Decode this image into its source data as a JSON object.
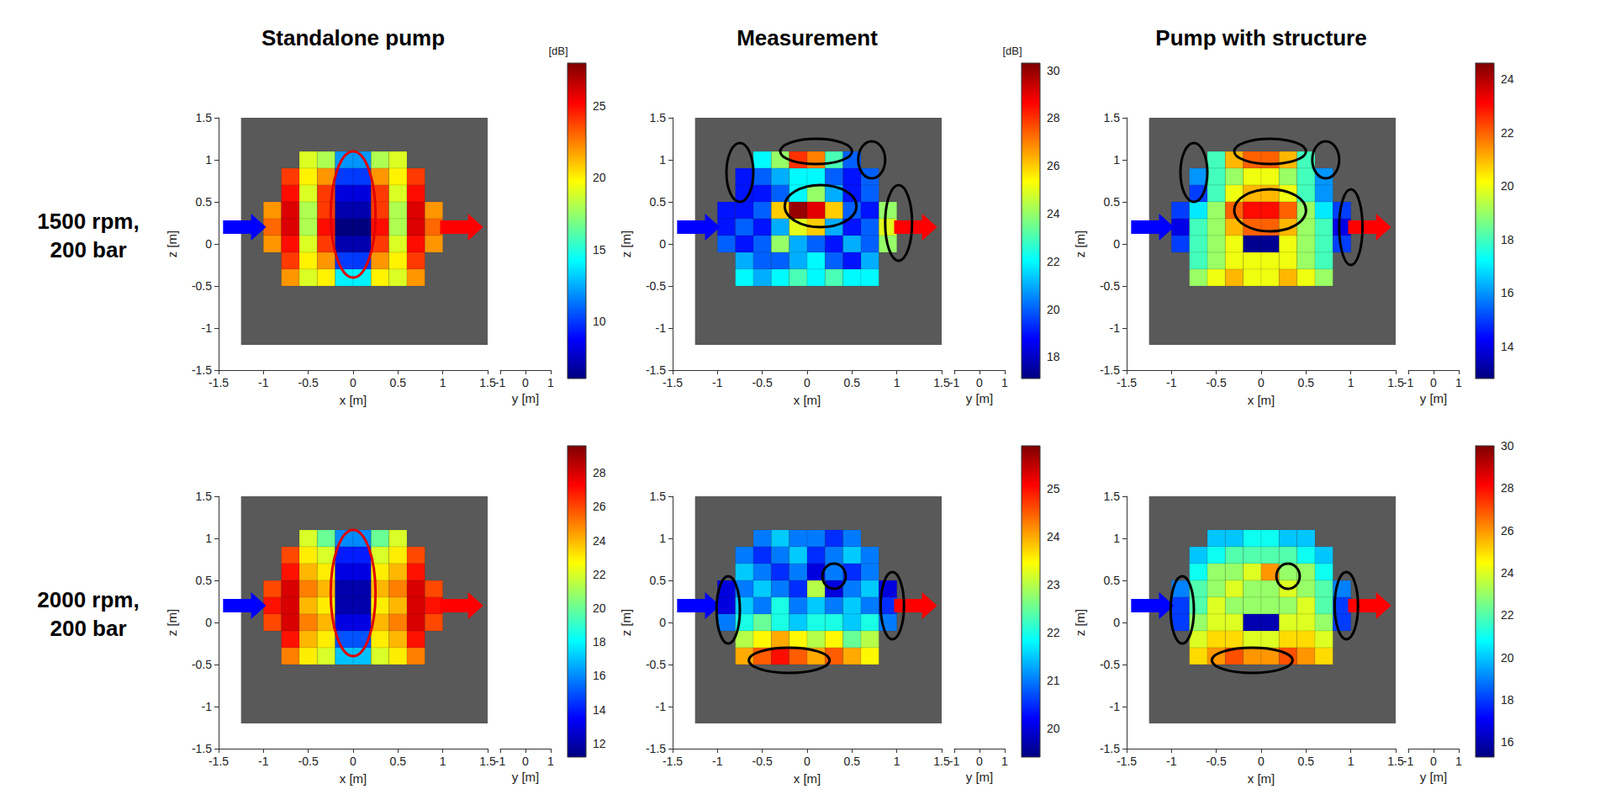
{
  "column_titles": [
    "Standalone pump",
    "Measurement",
    "Pump with structure"
  ],
  "row_labels": [
    "1500 rpm, 200 bar",
    "2000 rpm, 200 bar"
  ],
  "chart_data": [
    {
      "type": "heatmap",
      "grid": false,
      "x_label": "x [m]",
      "z_label": "z [m]",
      "y_label": "y [m]",
      "xlim": [
        -1.5,
        1.5
      ],
      "xticks": [
        -1.5,
        -1,
        -0.5,
        0,
        0.5,
        1,
        1.5
      ],
      "zlim": [
        -1.5,
        1.5
      ],
      "zticks": [
        -1.5,
        -1,
        -0.5,
        0,
        0.5,
        1,
        1.5
      ],
      "ylim": [
        -1,
        1
      ],
      "yticks": [
        -1,
        0,
        1
      ],
      "x": [
        -0.9,
        -0.7,
        -0.5,
        -0.3,
        -0.1,
        0.1,
        0.3,
        0.5,
        0.7,
        0.9
      ],
      "z": [
        1,
        0.8,
        0.6,
        0.4,
        0.2,
        0,
        -0.2,
        -0.4
      ],
      "cells": [
        [
          null,
          null,
          19,
          18,
          12,
          12,
          18,
          19,
          null,
          null
        ],
        [
          null,
          24,
          20,
          22,
          10,
          10,
          22,
          20,
          24,
          null
        ],
        [
          null,
          25,
          19,
          24,
          8,
          8,
          24,
          19,
          25,
          null
        ],
        [
          22,
          26,
          18,
          24,
          7,
          7,
          24,
          18,
          26,
          22
        ],
        [
          23,
          26,
          18,
          25,
          6,
          6,
          25,
          18,
          26,
          23
        ],
        [
          22,
          25,
          19,
          24,
          7,
          7,
          24,
          19,
          25,
          22
        ],
        [
          null,
          24,
          20,
          22,
          10,
          10,
          22,
          20,
          24,
          null
        ],
        [
          null,
          22,
          19,
          20,
          14,
          14,
          20,
          19,
          22,
          null
        ]
      ],
      "colorbar": {
        "range": [
          6,
          28
        ],
        "ticks": [
          10,
          15,
          20,
          25
        ],
        "label": "[dB]"
      }
    },
    {
      "type": "heatmap",
      "grid": false,
      "x_label": "x [m]",
      "z_label": "z [m]",
      "y_label": "y [m]",
      "xlim": [
        -1.5,
        1.5
      ],
      "xticks": [
        -1.5,
        -1,
        -0.5,
        0,
        0.5,
        1,
        1.5
      ],
      "zlim": [
        -1.5,
        1.5
      ],
      "zticks": [
        -1.5,
        -1,
        -0.5,
        0,
        0.5,
        1,
        1.5
      ],
      "ylim": [
        -1,
        1
      ],
      "yticks": [
        -1,
        0,
        1
      ],
      "x": [
        -0.9,
        -0.7,
        -0.5,
        -0.3,
        -0.1,
        0.1,
        0.3,
        0.5,
        0.7,
        0.9
      ],
      "z": [
        1,
        0.8,
        0.6,
        0.4,
        0.2,
        0,
        -0.2,
        -0.4
      ],
      "cells": [
        [
          null,
          null,
          22,
          24,
          28,
          27,
          23,
          20,
          null,
          null
        ],
        [
          null,
          19,
          20,
          21,
          22,
          22,
          20,
          19,
          20,
          null
        ],
        [
          null,
          19,
          19,
          20,
          22,
          24,
          21,
          19,
          20,
          null
        ],
        [
          19,
          19,
          20,
          26,
          30,
          29,
          26,
          20,
          19,
          24
        ],
        [
          19,
          20,
          19,
          21,
          25,
          26,
          21,
          19,
          20,
          25
        ],
        [
          20,
          19,
          20,
          24,
          21,
          20,
          19,
          21,
          20,
          24
        ],
        [
          null,
          21,
          20,
          20,
          21,
          22,
          20,
          19,
          21,
          null
        ],
        [
          null,
          22,
          21,
          22,
          23,
          22,
          23,
          22,
          22,
          null
        ]
      ],
      "colorbar": {
        "range": [
          17.1,
          30.3
        ],
        "ticks": [
          18,
          20,
          22,
          24,
          26,
          28,
          30
        ],
        "label": "[dB]"
      }
    },
    {
      "type": "heatmap",
      "grid": false,
      "x_label": "x [m]",
      "z_label": "z [m]",
      "y_label": "y [m]",
      "xlim": [
        -1.5,
        1.5
      ],
      "xticks": [
        -1.5,
        -1,
        -0.5,
        0,
        0.5,
        1,
        1.5
      ],
      "zlim": [
        -1.5,
        1.5
      ],
      "zticks": [
        -1.5,
        -1,
        -0.5,
        0,
        0.5,
        1,
        1.5
      ],
      "ylim": [
        -1,
        1
      ],
      "yticks": [
        -1,
        0,
        1
      ],
      "x": [
        -0.9,
        -0.7,
        -0.5,
        -0.3,
        -0.1,
        0.1,
        0.3,
        0.5,
        0.7,
        0.9
      ],
      "z": [
        1,
        0.8,
        0.6,
        0.4,
        0.2,
        0,
        -0.2,
        -0.4
      ],
      "cells": [
        [
          null,
          null,
          18,
          21,
          22,
          22,
          21,
          18,
          null,
          null
        ],
        [
          null,
          16,
          18,
          19,
          20,
          20,
          19,
          18,
          16,
          null
        ],
        [
          null,
          15,
          18,
          20,
          21,
          21,
          20,
          18,
          16,
          null
        ],
        [
          15,
          17,
          19,
          22,
          23,
          23,
          22,
          19,
          17,
          15
        ],
        [
          14,
          18,
          19,
          21,
          22,
          22,
          21,
          19,
          18,
          14
        ],
        [
          15,
          18,
          19,
          20,
          13,
          13,
          20,
          19,
          18,
          15
        ],
        [
          null,
          18,
          19,
          20,
          20,
          20,
          20,
          19,
          18,
          null
        ],
        [
          null,
          19,
          20,
          21,
          20,
          20,
          21,
          20,
          19,
          null
        ]
      ],
      "colorbar": {
        "range": [
          12.8,
          24.6
        ],
        "ticks": [
          14,
          16,
          18,
          20,
          22,
          24
        ]
      }
    },
    {
      "type": "heatmap",
      "grid": false,
      "x_label": "x [m]",
      "z_label": "z [m]",
      "y_label": "y [m]",
      "xlim": [
        -1.5,
        1.5
      ],
      "xticks": [
        -1.5,
        -1,
        -0.5,
        0,
        0.5,
        1,
        1.5
      ],
      "zlim": [
        -1.5,
        1.5
      ],
      "zticks": [
        -1.5,
        -1,
        -0.5,
        0,
        0.5,
        1,
        1.5
      ],
      "ylim": [
        -1,
        1
      ],
      "yticks": [
        -1,
        0,
        1
      ],
      "x": [
        -0.9,
        -0.7,
        -0.5,
        -0.3,
        -0.1,
        0.1,
        0.3,
        0.5,
        0.7,
        0.9
      ],
      "z": [
        1,
        0.8,
        0.6,
        0.4,
        0.2,
        0,
        -0.2,
        -0.4
      ],
      "cells": [
        [
          null,
          null,
          22,
          20,
          16,
          16,
          20,
          22,
          null,
          null
        ],
        [
          null,
          26,
          23,
          22,
          14,
          14,
          22,
          23,
          26,
          null
        ],
        [
          null,
          27,
          24,
          23,
          13,
          13,
          23,
          24,
          27,
          null
        ],
        [
          26,
          28,
          25,
          24,
          12,
          12,
          24,
          25,
          28,
          26
        ],
        [
          27,
          28,
          24,
          23,
          12,
          12,
          23,
          24,
          28,
          27
        ],
        [
          26,
          28,
          25,
          24,
          13,
          13,
          24,
          25,
          28,
          26
        ],
        [
          null,
          27,
          24,
          23,
          15,
          15,
          23,
          24,
          27,
          null
        ],
        [
          null,
          25,
          23,
          22,
          17,
          17,
          22,
          23,
          25,
          null
        ]
      ],
      "colorbar": {
        "range": [
          11.2,
          29.6
        ],
        "ticks": [
          12,
          14,
          16,
          18,
          20,
          22,
          24,
          26,
          28
        ]
      }
    },
    {
      "type": "heatmap",
      "grid": false,
      "x_label": "x [m]",
      "z_label": "z [m]",
      "y_label": "y [m]",
      "xlim": [
        -1.5,
        1.5
      ],
      "xticks": [
        -1.5,
        -1,
        -0.5,
        0,
        0.5,
        1,
        1.5
      ],
      "zlim": [
        -1.5,
        1.5
      ],
      "zticks": [
        -1.5,
        -1,
        -0.5,
        0,
        0.5,
        1,
        1.5
      ],
      "ylim": [
        -1,
        1
      ],
      "yticks": [
        -1,
        0,
        1
      ],
      "x": [
        -0.9,
        -0.7,
        -0.5,
        -0.3,
        -0.1,
        0.1,
        0.3,
        0.5,
        0.7,
        0.9
      ],
      "z": [
        1,
        0.8,
        0.6,
        0.4,
        0.2,
        0,
        -0.2,
        -0.4
      ],
      "cells": [
        [
          null,
          null,
          21,
          21.5,
          21,
          21,
          20.5,
          21,
          null,
          null
        ],
        [
          null,
          21,
          20.5,
          21,
          21.5,
          20.5,
          21,
          21.5,
          21,
          null
        ],
        [
          null,
          21.5,
          21,
          20.5,
          21,
          20,
          21,
          20.5,
          21,
          null
        ],
        [
          20,
          21,
          21.5,
          21,
          20.5,
          23,
          20,
          21,
          21.5,
          20
        ],
        [
          20,
          21.5,
          21,
          22,
          21,
          21.5,
          21,
          21.5,
          21,
          20.5
        ],
        [
          21,
          22,
          22.5,
          22,
          21.5,
          22,
          22,
          21.5,
          22,
          21
        ],
        [
          null,
          23,
          23.5,
          24,
          23.5,
          23,
          23.5,
          22.5,
          23,
          null
        ],
        [
          null,
          24,
          24.5,
          25,
          24.5,
          24,
          24.5,
          24,
          23.5,
          null
        ]
      ],
      "colorbar": {
        "range": [
          19.4,
          25.9
        ],
        "ticks": [
          20,
          21,
          22,
          23,
          24,
          25
        ]
      }
    },
    {
      "type": "heatmap",
      "grid": false,
      "x_label": "x [m]",
      "z_label": "z [m]",
      "y_label": "y [m]",
      "xlim": [
        -1.5,
        1.5
      ],
      "xticks": [
        -1.5,
        -1,
        -0.5,
        0,
        0.5,
        1,
        1.5
      ],
      "zlim": [
        -1.5,
        1.5
      ],
      "zticks": [
        -1.5,
        -1,
        -0.5,
        0,
        0.5,
        1,
        1.5
      ],
      "ylim": [
        -1,
        1
      ],
      "yticks": [
        -1,
        0,
        1
      ],
      "x": [
        -0.9,
        -0.7,
        -0.5,
        -0.3,
        -0.1,
        0.1,
        0.3,
        0.5,
        0.7,
        0.9
      ],
      "z": [
        1,
        0.8,
        0.6,
        0.4,
        0.2,
        0,
        -0.2,
        -0.4
      ],
      "cells": [
        [
          null,
          null,
          20,
          20,
          21,
          21,
          20,
          20,
          null,
          null
        ],
        [
          null,
          20,
          21,
          22,
          22,
          22,
          22,
          21,
          20,
          null
        ],
        [
          null,
          21,
          23,
          23,
          24,
          26,
          23,
          23,
          21,
          null
        ],
        [
          19,
          22,
          23,
          24,
          23,
          23,
          24,
          23,
          22,
          19
        ],
        [
          18,
          22,
          24,
          23,
          23,
          23,
          23,
          24,
          22,
          18
        ],
        [
          18,
          23,
          24,
          24,
          16,
          16,
          24,
          24,
          23,
          18
        ],
        [
          null,
          24,
          25,
          25,
          24,
          24,
          25,
          25,
          24,
          null
        ],
        [
          null,
          25,
          26,
          27,
          26,
          26,
          27,
          26,
          25,
          null
        ]
      ],
      "colorbar": {
        "range": [
          15.3,
          30
        ],
        "ticks": [
          16,
          18,
          20,
          22,
          24,
          26,
          28,
          30
        ]
      }
    }
  ]
}
